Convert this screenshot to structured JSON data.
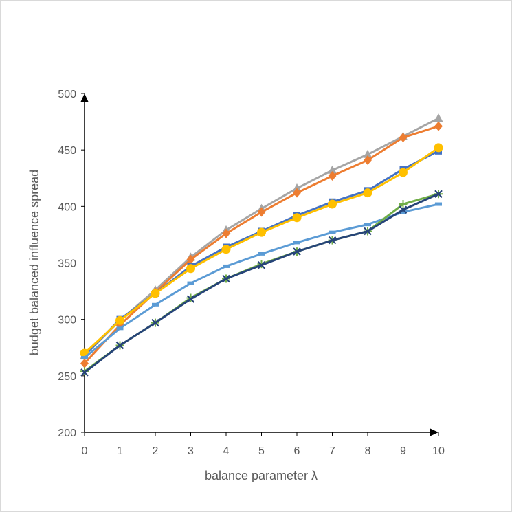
{
  "chart_data": {
    "type": "line",
    "title": "",
    "xlabel": "balance parameter λ",
    "ylabel": "budget balanced influence spread",
    "xlim": [
      0,
      10
    ],
    "ylim": [
      200,
      500
    ],
    "x_ticks": [
      "0",
      "1",
      "2",
      "3",
      "4",
      "5",
      "6",
      "7",
      "8",
      "9",
      "10"
    ],
    "y_ticks": [
      "200",
      "250",
      "300",
      "350",
      "400",
      "450",
      "500"
    ],
    "grid": false,
    "legend": "none",
    "x": [
      0,
      1,
      2,
      3,
      4,
      5,
      6,
      7,
      8,
      9,
      10
    ],
    "series": [
      {
        "color": "#A5A5A5",
        "marker": "triangle",
        "values": [
          268,
          299,
          326,
          355,
          379,
          398,
          416,
          432,
          446,
          462,
          478
        ]
      },
      {
        "color": "#ED7D31",
        "marker": "diamond",
        "values": [
          261,
          295,
          324,
          353,
          376,
          395,
          412,
          427,
          441,
          461,
          471
        ]
      },
      {
        "color": "#4472C4",
        "marker": "square",
        "values": [
          268,
          300,
          323,
          347,
          364,
          378,
          392,
          404,
          414,
          433,
          449
        ]
      },
      {
        "color": "#FFC000",
        "marker": "circle",
        "values": [
          270,
          299,
          323,
          345,
          362,
          377,
          390,
          402,
          412,
          430,
          452
        ]
      },
      {
        "color": "#5B9BD5",
        "marker": "dash",
        "values": [
          266,
          292,
          313,
          332,
          347,
          358,
          368,
          377,
          384,
          395,
          402
        ]
      },
      {
        "color": "#70AD47",
        "marker": "plus",
        "values": [
          254,
          277,
          297,
          319,
          336,
          349,
          360,
          370,
          378,
          402,
          411
        ]
      },
      {
        "color": "#264478",
        "marker": "x",
        "values": [
          253,
          277,
          297,
          318,
          336,
          348,
          360,
          370,
          378,
          397,
          411
        ]
      }
    ]
  }
}
